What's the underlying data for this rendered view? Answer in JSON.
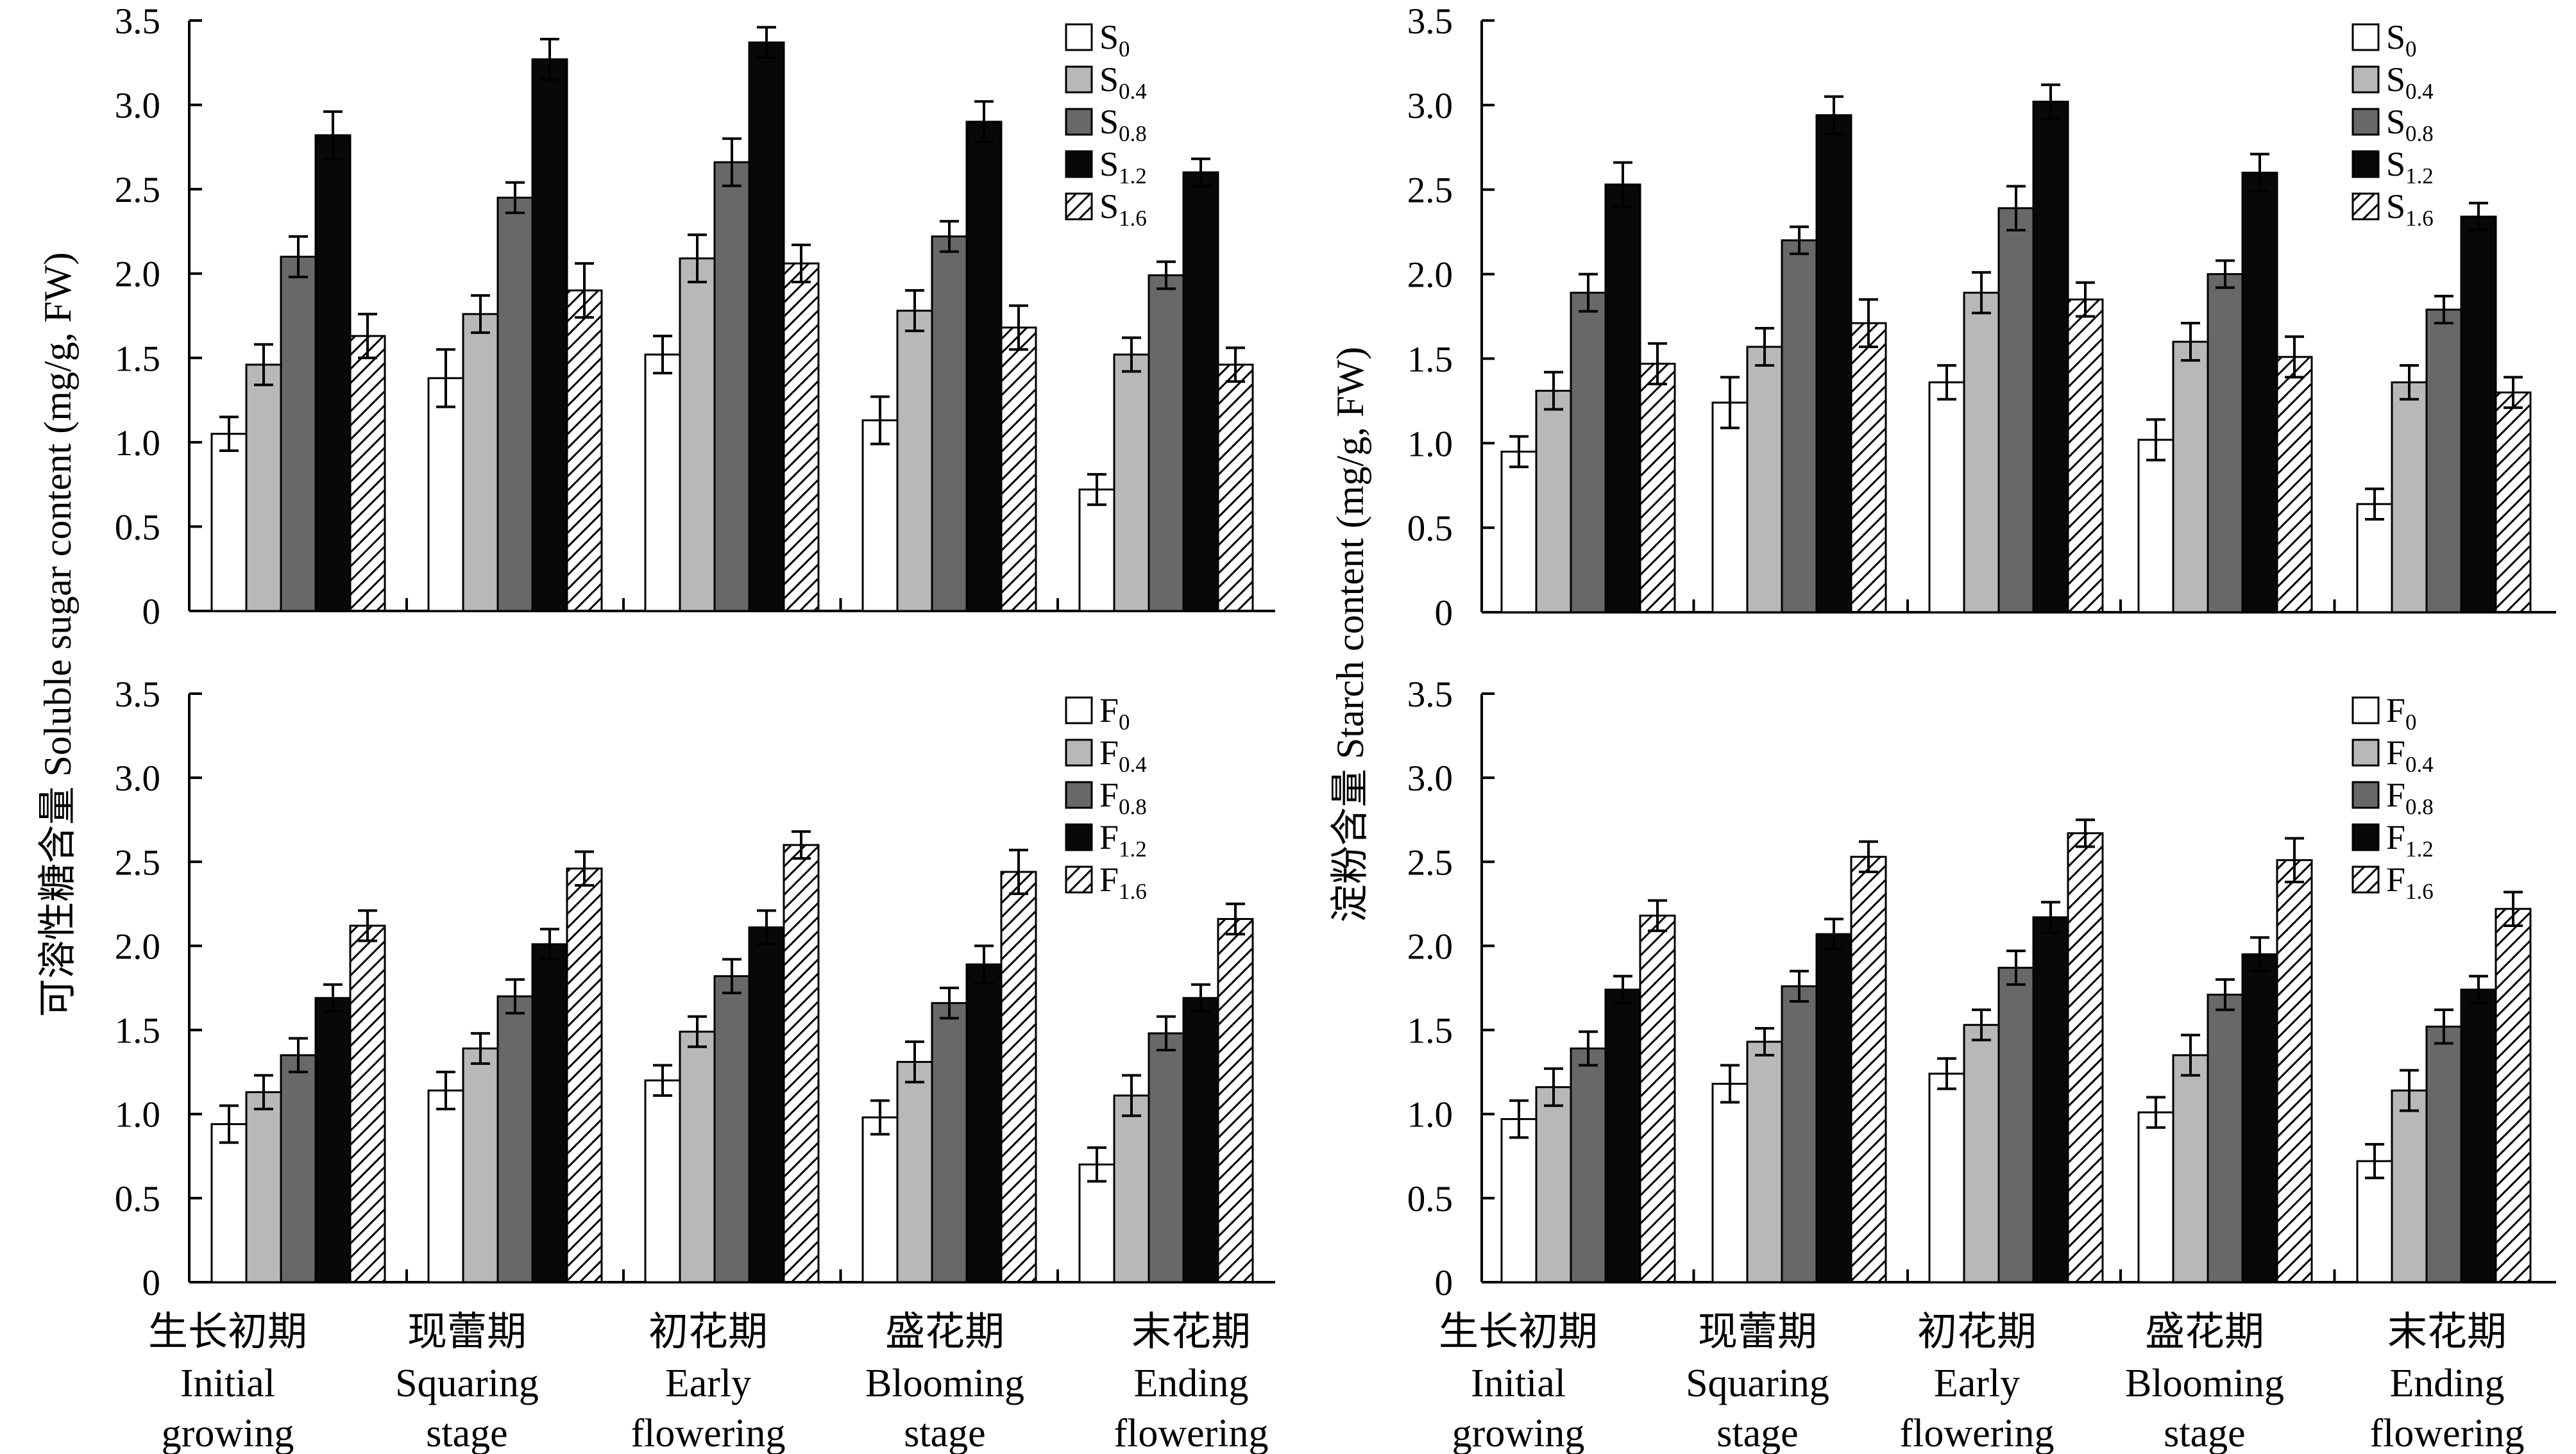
{
  "legend_colors": {
    "0": "#ffffff",
    "0.4": "#b8b8b8",
    "0.8": "#686868",
    "1.2": "#080808",
    "1.6": "hatch"
  },
  "categories": [
    {
      "zh": "生长初期",
      "en1": "Initial",
      "en2": "growing"
    },
    {
      "zh": "现蕾期",
      "en1": "Squaring",
      "en2": "stage"
    },
    {
      "zh": "初花期",
      "en1": "Early",
      "en2": "flowering"
    },
    {
      "zh": "盛花期",
      "en1": "Blooming",
      "en2": "stage"
    },
    {
      "zh": "末花期",
      "en1": "Ending",
      "en2": "flowering"
    }
  ],
  "y_labels": {
    "left": "可溶性糖含量 Soluble sugar content (mg/g, FW)",
    "right": "淀粉含量 Starch content (mg/g, FW)"
  },
  "chart_data": [
    {
      "type": "bar",
      "id": "soluble-sugar-s",
      "ylabel": "可溶性糖含量 Soluble sugar content (mg/g, FW)",
      "ylim": [
        0,
        3.5
      ],
      "yticks": [
        "0",
        "0.5",
        "1.0",
        "1.5",
        "2.0",
        "2.5",
        "3.0",
        "3.5"
      ],
      "categories": [
        "生长初期 Initial growing",
        "现蕾期 Squaring stage",
        "初花期 Early flowering",
        "盛花期 Blooming stage",
        "末花期 Ending flowering"
      ],
      "series": [
        {
          "name": "S0",
          "base": "S",
          "sub": "0",
          "values": [
            1.05,
            1.38,
            1.52,
            1.13,
            0.72
          ],
          "errors": [
            0.1,
            0.17,
            0.11,
            0.14,
            0.09
          ]
        },
        {
          "name": "S0.4",
          "base": "S",
          "sub": "0.4",
          "values": [
            1.46,
            1.76,
            2.09,
            1.78,
            1.52
          ],
          "errors": [
            0.12,
            0.11,
            0.14,
            0.12,
            0.1
          ]
        },
        {
          "name": "S0.8",
          "base": "S",
          "sub": "0.8",
          "values": [
            2.1,
            2.45,
            2.66,
            2.22,
            1.99
          ],
          "errors": [
            0.12,
            0.09,
            0.14,
            0.09,
            0.08
          ]
        },
        {
          "name": "S1.2",
          "base": "S",
          "sub": "1.2",
          "values": [
            2.82,
            3.27,
            3.37,
            2.9,
            2.6
          ],
          "errors": [
            0.14,
            0.12,
            0.09,
            0.12,
            0.08
          ]
        },
        {
          "name": "S1.6",
          "base": "S",
          "sub": "1.6",
          "values": [
            1.63,
            1.9,
            2.06,
            1.68,
            1.46
          ],
          "errors": [
            0.13,
            0.16,
            0.11,
            0.13,
            0.1
          ]
        }
      ]
    },
    {
      "type": "bar",
      "id": "starch-s",
      "ylabel": "淀粉含量 Starch content (mg/g, FW)",
      "ylim": [
        0,
        3.5
      ],
      "yticks": [
        "0",
        "0.5",
        "1.0",
        "1.5",
        "2.0",
        "2.5",
        "3.0",
        "3.5"
      ],
      "categories": [
        "生长初期 Initial growing",
        "现蕾期 Squaring stage",
        "初花期 Early flowering",
        "盛花期 Blooming stage",
        "末花期 Ending flowering"
      ],
      "series": [
        {
          "name": "S0",
          "base": "S",
          "sub": "0",
          "values": [
            0.95,
            1.24,
            1.36,
            1.02,
            0.64
          ],
          "errors": [
            0.09,
            0.15,
            0.1,
            0.12,
            0.09
          ]
        },
        {
          "name": "S0.4",
          "base": "S",
          "sub": "0.4",
          "values": [
            1.31,
            1.57,
            1.89,
            1.6,
            1.36
          ],
          "errors": [
            0.11,
            0.11,
            0.12,
            0.11,
            0.1
          ]
        },
        {
          "name": "S0.8",
          "base": "S",
          "sub": "0.8",
          "values": [
            1.89,
            2.2,
            2.39,
            2.0,
            1.79
          ],
          "errors": [
            0.11,
            0.08,
            0.13,
            0.08,
            0.08
          ]
        },
        {
          "name": "S1.2",
          "base": "S",
          "sub": "1.2",
          "values": [
            2.53,
            2.94,
            3.02,
            2.6,
            2.34
          ],
          "errors": [
            0.13,
            0.11,
            0.1,
            0.11,
            0.08
          ]
        },
        {
          "name": "S1.6",
          "base": "S",
          "sub": "1.6",
          "values": [
            1.47,
            1.71,
            1.85,
            1.51,
            1.3
          ],
          "errors": [
            0.12,
            0.14,
            0.1,
            0.12,
            0.09
          ]
        }
      ]
    },
    {
      "type": "bar",
      "id": "soluble-sugar-f",
      "ylabel": "可溶性糖含量 Soluble sugar content (mg/g, FW)",
      "ylim": [
        0,
        3.5
      ],
      "yticks": [
        "0",
        "0.5",
        "1.0",
        "1.5",
        "2.0",
        "2.5",
        "3.0",
        "3.5"
      ],
      "categories": [
        "生长初期 Initial growing",
        "现蕾期 Squaring stage",
        "初花期 Early flowering",
        "盛花期 Blooming stage",
        "末花期 Ending flowering"
      ],
      "series": [
        {
          "name": "F0",
          "base": "F",
          "sub": "0",
          "values": [
            0.94,
            1.14,
            1.2,
            0.98,
            0.7
          ],
          "errors": [
            0.11,
            0.11,
            0.09,
            0.1,
            0.1
          ]
        },
        {
          "name": "F0.4",
          "base": "F",
          "sub": "0.4",
          "values": [
            1.13,
            1.39,
            1.49,
            1.31,
            1.11
          ],
          "errors": [
            0.1,
            0.09,
            0.09,
            0.12,
            0.12
          ]
        },
        {
          "name": "F0.8",
          "base": "F",
          "sub": "0.8",
          "values": [
            1.35,
            1.7,
            1.82,
            1.66,
            1.48
          ],
          "errors": [
            0.1,
            0.1,
            0.1,
            0.09,
            0.1
          ]
        },
        {
          "name": "F1.2",
          "base": "F",
          "sub": "1.2",
          "values": [
            1.69,
            2.01,
            2.11,
            1.89,
            1.69
          ],
          "errors": [
            0.08,
            0.09,
            0.1,
            0.11,
            0.08
          ]
        },
        {
          "name": "F1.6",
          "base": "F",
          "sub": "1.6",
          "values": [
            2.12,
            2.46,
            2.6,
            2.44,
            2.16
          ],
          "errors": [
            0.09,
            0.1,
            0.08,
            0.13,
            0.09
          ]
        }
      ]
    },
    {
      "type": "bar",
      "id": "starch-f",
      "ylabel": "淀粉含量 Starch content (mg/g, FW)",
      "ylim": [
        0,
        3.5
      ],
      "yticks": [
        "0",
        "0.5",
        "1.0",
        "1.5",
        "2.0",
        "2.5",
        "3.0",
        "3.5"
      ],
      "categories": [
        "生长初期 Initial growing",
        "现蕾期 Squaring stage",
        "初花期 Early flowering",
        "盛花期 Blooming stage",
        "末花期 Ending flowering"
      ],
      "series": [
        {
          "name": "F0",
          "base": "F",
          "sub": "0",
          "values": [
            0.97,
            1.18,
            1.24,
            1.01,
            0.72
          ],
          "errors": [
            0.11,
            0.11,
            0.09,
            0.09,
            0.1
          ]
        },
        {
          "name": "F0.4",
          "base": "F",
          "sub": "0.4",
          "values": [
            1.16,
            1.43,
            1.53,
            1.35,
            1.14
          ],
          "errors": [
            0.11,
            0.08,
            0.09,
            0.12,
            0.12
          ]
        },
        {
          "name": "F0.8",
          "base": "F",
          "sub": "0.8",
          "values": [
            1.39,
            1.76,
            1.87,
            1.71,
            1.52
          ],
          "errors": [
            0.1,
            0.09,
            0.1,
            0.09,
            0.1
          ]
        },
        {
          "name": "F1.2",
          "base": "F",
          "sub": "1.2",
          "values": [
            1.74,
            2.07,
            2.17,
            1.95,
            1.74
          ],
          "errors": [
            0.08,
            0.09,
            0.09,
            0.1,
            0.08
          ]
        },
        {
          "name": "F1.6",
          "base": "F",
          "sub": "1.6",
          "values": [
            2.18,
            2.53,
            2.67,
            2.51,
            2.22
          ],
          "errors": [
            0.09,
            0.09,
            0.08,
            0.13,
            0.1
          ]
        }
      ]
    }
  ]
}
